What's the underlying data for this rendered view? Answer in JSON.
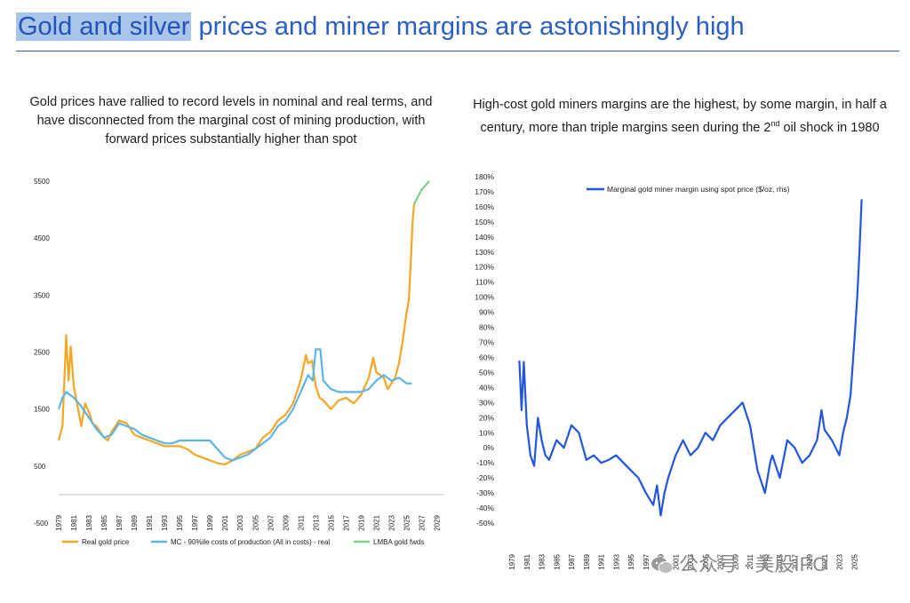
{
  "header": {
    "title_highlight": "Gold and silver",
    "title_rest": "prices and miner margins are astonishingly high"
  },
  "left_panel": {
    "subtitle_lines": [
      "Gold prices have rallied to record levels in nominal and real terms, and",
      "have disconnected from the marginal cost of mining production, with",
      "forward prices substantially higher than spot"
    ]
  },
  "right_panel": {
    "subtitle_line1": "High-cost gold miners margins are the highest, by some margin, in half a",
    "subtitle_line2_pre": "century, more than triple margins seen during the 2",
    "subtitle_sup": "nd",
    "subtitle_line2_post": " oil shock in 1980"
  },
  "watermark": {
    "text": "公众号 · 美股IPO"
  },
  "chart_data": [
    {
      "type": "line",
      "ylim": [
        -500,
        5500
      ],
      "xlim": [
        1979,
        2030
      ],
      "yticks": [
        5500,
        4500,
        3500,
        2500,
        1500,
        500,
        -500
      ],
      "xticks": [
        1979,
        1981,
        1983,
        1985,
        1987,
        1989,
        1991,
        1993,
        1995,
        1997,
        1999,
        2001,
        2003,
        2005,
        2007,
        2009,
        2011,
        2013,
        2015,
        2017,
        2019,
        2021,
        2023,
        2025,
        2027,
        2029
      ],
      "series": [
        {
          "name": "Real gold price",
          "color": "#f5a623",
          "x": [
            1979,
            1979.5,
            1980,
            1980.3,
            1980.6,
            1981,
            1981.5,
            1982,
            1982.5,
            1983,
            1983.5,
            1984,
            1985,
            1985.5,
            1986,
            1987,
            1988,
            1989,
            1990,
            1991,
            1992,
            1993,
            1994,
            1995,
            1996,
            1997,
            1998,
            1999,
            2000,
            2001,
            2002,
            2003,
            2004,
            2005,
            2006,
            2007,
            2008,
            2009,
            2010,
            2011,
            2011.7,
            2012,
            2012.5,
            2013,
            2013.5,
            2014,
            2015,
            2016,
            2017,
            2018,
            2019,
            2020,
            2020.6,
            2021,
            2022,
            2022.5,
            2023,
            2023.5,
            2024,
            2024.5,
            2025,
            2025.3,
            2025.6,
            2025.8,
            2026
          ],
          "y": [
            950,
            1200,
            2800,
            2000,
            2600,
            1900,
            1550,
            1200,
            1600,
            1450,
            1250,
            1200,
            1000,
            950,
            1100,
            1300,
            1250,
            1050,
            1000,
            950,
            900,
            850,
            850,
            850,
            800,
            700,
            650,
            600,
            550,
            530,
            600,
            700,
            750,
            800,
            1000,
            1100,
            1300,
            1400,
            1600,
            2000,
            2450,
            2300,
            2350,
            1900,
            1700,
            1650,
            1500,
            1650,
            1700,
            1600,
            1750,
            2050,
            2400,
            2150,
            2050,
            1850,
            1950,
            2050,
            2300,
            2700,
            3200,
            3400,
            4200,
            4800,
            5100
          ]
        },
        {
          "name": "MC - 90%ile costs of production (All in costs) - real",
          "color": "#5bb5ea",
          "x": [
            1979,
            1979.5,
            1980,
            1981,
            1982,
            1983,
            1984,
            1985,
            1986,
            1987,
            1988,
            1989,
            1990,
            1991,
            1992,
            1993,
            1994,
            1995,
            1996,
            1997,
            1998,
            1999,
            2000,
            2001,
            2002,
            2003,
            2004,
            2005,
            2006,
            2007,
            2008,
            2009,
            2010,
            2011,
            2012,
            2012.6,
            2013,
            2013.6,
            2014,
            2015,
            2016,
            2017,
            2018,
            2019,
            2020,
            2021,
            2022,
            2023,
            2024,
            2025,
            2025.7
          ],
          "y": [
            1500,
            1700,
            1800,
            1700,
            1550,
            1350,
            1150,
            1000,
            1050,
            1250,
            1200,
            1150,
            1050,
            1000,
            950,
            900,
            900,
            950,
            950,
            950,
            950,
            950,
            800,
            650,
            600,
            650,
            700,
            800,
            900,
            1000,
            1200,
            1300,
            1500,
            1800,
            2100,
            2000,
            2550,
            2550,
            2000,
            1850,
            1800,
            1800,
            1800,
            1800,
            1850,
            2000,
            2100,
            2000,
            2050,
            1950,
            1950
          ]
        },
        {
          "name": "LMBA gold fwds",
          "color": "#7ed087",
          "x": [
            2026,
            2027,
            2028
          ],
          "y": [
            5100,
            5350,
            5500
          ]
        }
      ]
    },
    {
      "type": "line",
      "ylim": [
        -50,
        180
      ],
      "xlim": [
        1979,
        2027
      ],
      "yticks": [
        180,
        170,
        160,
        150,
        140,
        130,
        120,
        110,
        100,
        90,
        80,
        70,
        60,
        50,
        40,
        30,
        20,
        10,
        0,
        -10,
        -20,
        -30,
        -40,
        -50
      ],
      "ytick_labels": [
        "180%",
        "170%",
        "160%",
        "150%",
        "140%",
        "130%",
        "120%",
        "110%",
        "100%",
        "90%",
        "80%",
        "70%",
        "60%",
        "50%",
        "40%",
        "30%",
        "20%",
        "10%",
        "0%",
        "-10%",
        "-20%",
        "-30%",
        "-40%",
        "-50%"
      ],
      "xticks": [
        1979,
        1981,
        1983,
        1985,
        1987,
        1989,
        1991,
        1993,
        1995,
        1997,
        1999,
        2001,
        2003,
        2005,
        2007,
        2009,
        2011,
        2013,
        2015,
        2017,
        2019,
        2021,
        2023,
        2025
      ],
      "series": [
        {
          "name": "Marginal gold miner margin using spot price ($/oz, rhs)",
          "color": "#2255e0",
          "x": [
            1980,
            1980.3,
            1980.6,
            1981,
            1981.5,
            1982,
            1982.5,
            1983,
            1983.5,
            1984,
            1985,
            1986,
            1987,
            1988,
            1989,
            1990,
            1991,
            1992,
            1993,
            1994,
            1995,
            1996,
            1997,
            1998,
            1998.5,
            1999,
            1999.5,
            2000,
            2001,
            2002,
            2003,
            2004,
            2005,
            2006,
            2007,
            2008,
            2009,
            2010,
            2011,
            2012,
            2013,
            2013.7,
            2014,
            2015,
            2016,
            2017,
            2018,
            2019,
            2020,
            2020.6,
            2021,
            2022,
            2023,
            2023.5,
            2024,
            2024.5,
            2025,
            2025.4,
            2025.7,
            2026
          ],
          "y": [
            58,
            25,
            57,
            15,
            -5,
            -12,
            20,
            5,
            -5,
            -8,
            5,
            0,
            15,
            10,
            -8,
            -5,
            -10,
            -8,
            -5,
            -10,
            -15,
            -20,
            -30,
            -38,
            -25,
            -45,
            -30,
            -20,
            -5,
            5,
            -5,
            0,
            10,
            5,
            15,
            20,
            25,
            30,
            15,
            -15,
            -30,
            -10,
            -5,
            -20,
            5,
            0,
            -10,
            -5,
            5,
            25,
            12,
            5,
            -5,
            10,
            20,
            35,
            70,
            100,
            130,
            165
          ]
        }
      ]
    }
  ]
}
